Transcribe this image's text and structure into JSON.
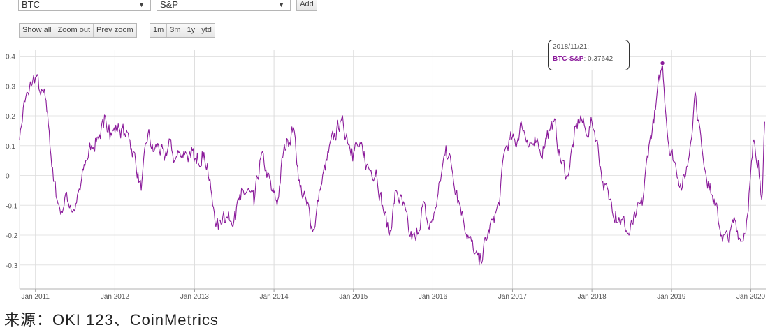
{
  "controls": {
    "select_a": "BTC",
    "select_b": "S&P",
    "add_label": "Add",
    "show_all": "Show all",
    "zoom_out": "Zoom out",
    "prev_zoom": "Prev zoom",
    "ranges": [
      "1m",
      "3m",
      "1y",
      "ytd"
    ]
  },
  "tooltip": {
    "date": "2018/11/21:",
    "series": "BTC-S&P",
    "value": ": 0.37642"
  },
  "source_text": "来源：OKI 123、CoinMetrics",
  "chart_data": {
    "type": "line",
    "title": "",
    "xlabel": "",
    "ylabel": "",
    "x_tick_labels": [
      "Jan 2011",
      "Jan 2012",
      "Jan 2013",
      "Jan 2014",
      "Jan 2015",
      "Jan 2016",
      "Jan 2017",
      "Jan 2018",
      "Jan 2019",
      "Jan 2020"
    ],
    "y_tick_labels": [
      "0.4",
      "0.3",
      "0.2",
      "0.1",
      "0",
      "-0.1",
      "-0.2",
      "-0.3"
    ],
    "ylim": [
      -0.38,
      0.42
    ],
    "xlim": [
      "2010-10-20",
      "2020-03-10"
    ],
    "line_color": "#8a1a9a",
    "grid": true,
    "highlight": {
      "x": "2018-11-21",
      "y": 0.37642
    },
    "series": [
      {
        "name": "BTC-S&P",
        "x": [
          "2010-10-20",
          "2010-11-10",
          "2010-12-01",
          "2010-12-20",
          "2011-01-05",
          "2011-01-25",
          "2011-02-15",
          "2011-03-05",
          "2011-03-25",
          "2011-04-10",
          "2011-05-01",
          "2011-05-20",
          "2011-06-10",
          "2011-07-01",
          "2011-07-25",
          "2011-08-20",
          "2011-09-15",
          "2011-10-15",
          "2011-11-10",
          "2011-12-05",
          "2011-12-25",
          "2012-01-20",
          "2012-02-15",
          "2012-03-10",
          "2012-04-05",
          "2012-05-01",
          "2012-06-01",
          "2012-06-25",
          "2012-07-20",
          "2012-08-15",
          "2012-09-10",
          "2012-10-01",
          "2012-10-25",
          "2012-11-20",
          "2012-12-15",
          "2013-01-10",
          "2013-02-05",
          "2013-03-01",
          "2013-03-25",
          "2013-04-20",
          "2013-05-15",
          "2013-06-10",
          "2013-07-05",
          "2013-08-01",
          "2013-09-01",
          "2013-10-01",
          "2013-11-01",
          "2013-11-25",
          "2013-12-20",
          "2014-01-15",
          "2014-02-10",
          "2014-03-05",
          "2014-04-01",
          "2014-05-01",
          "2014-06-01",
          "2014-07-01",
          "2014-08-01",
          "2014-09-01",
          "2014-10-01",
          "2014-11-01",
          "2014-12-01",
          "2014-12-25",
          "2015-01-20",
          "2015-02-15",
          "2015-03-15",
          "2015-04-15",
          "2015-05-15",
          "2015-06-15",
          "2015-07-15",
          "2015-08-15",
          "2015-09-15",
          "2015-10-15",
          "2015-11-15",
          "2015-12-15",
          "2016-01-10",
          "2016-02-05",
          "2016-03-01",
          "2016-03-25",
          "2016-04-20",
          "2016-05-15",
          "2016-06-10",
          "2016-07-05",
          "2016-08-01",
          "2016-09-01",
          "2016-10-01",
          "2016-11-01",
          "2016-11-25",
          "2016-12-20",
          "2017-01-15",
          "2017-02-10",
          "2017-03-10",
          "2017-04-10",
          "2017-05-10",
          "2017-06-10",
          "2017-07-10",
          "2017-08-10",
          "2017-09-10",
          "2017-10-10",
          "2017-11-10",
          "2017-12-05",
          "2018-01-01",
          "2018-01-25",
          "2018-02-20",
          "2018-03-20",
          "2018-04-20",
          "2018-05-20",
          "2018-06-20",
          "2018-07-20",
          "2018-08-20",
          "2018-09-20",
          "2018-10-20",
          "2018-11-21",
          "2018-12-20",
          "2019-01-20",
          "2019-02-20",
          "2019-03-20",
          "2019-04-20",
          "2019-05-20",
          "2019-06-20",
          "2019-07-20",
          "2019-08-20",
          "2019-09-20",
          "2019-10-20",
          "2019-11-20",
          "2019-12-20",
          "2020-01-15",
          "2020-02-05",
          "2020-02-20",
          "2020-03-05"
        ],
        "y": [
          0.12,
          0.25,
          0.27,
          0.32,
          0.33,
          0.27,
          0.26,
          0.15,
          -0.02,
          -0.08,
          -0.12,
          -0.06,
          -0.1,
          -0.12,
          -0.05,
          0.05,
          0.1,
          0.13,
          0.16,
          0.17,
          0.15,
          0.16,
          0.14,
          0.12,
          0.05,
          -0.05,
          0.14,
          0.08,
          0.1,
          0.05,
          0.12,
          0.05,
          0.08,
          0.08,
          0.06,
          0.04,
          0.08,
          0.04,
          -0.1,
          -0.18,
          -0.12,
          -0.15,
          -0.12,
          -0.08,
          -0.05,
          -0.1,
          0.06,
          0.02,
          -0.05,
          -0.1,
          0.06,
          0.12,
          0.16,
          -0.04,
          -0.1,
          -0.18,
          -0.05,
          0.05,
          0.12,
          0.18,
          0.14,
          0.09,
          0.1,
          0.06,
          0.02,
          0.02,
          -0.1,
          -0.2,
          -0.05,
          -0.1,
          -0.2,
          -0.22,
          -0.1,
          -0.18,
          -0.12,
          -0.02,
          0.1,
          0.04,
          -0.05,
          -0.12,
          -0.2,
          -0.25,
          -0.3,
          -0.22,
          -0.15,
          -0.1,
          0.08,
          0.12,
          0.1,
          0.18,
          0.12,
          0.1,
          0.07,
          0.15,
          0.18,
          0.05,
          0.0,
          0.12,
          0.2,
          0.14,
          0.18,
          0.12,
          -0.02,
          -0.08,
          -0.12,
          -0.15,
          -0.2,
          -0.14,
          -0.1,
          0.1,
          0.22,
          0.37642,
          0.1,
          0.04,
          -0.04,
          0.05,
          0.28,
          0.1,
          -0.02,
          -0.1,
          -0.2,
          -0.22,
          -0.15,
          -0.22,
          -0.12,
          0.12,
          0.05,
          -0.08,
          0.18
        ]
      }
    ]
  }
}
